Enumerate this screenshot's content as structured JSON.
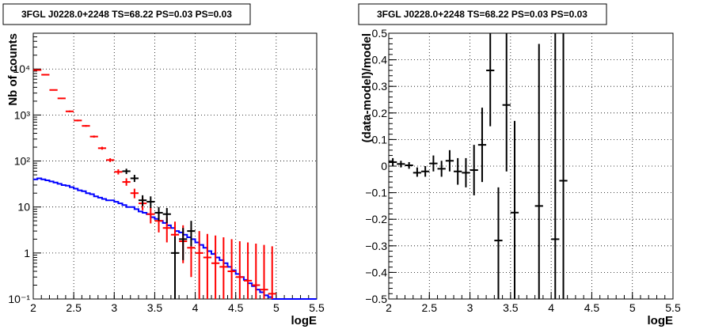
{
  "chart_data": [
    {
      "type": "line",
      "title": "3FGL J0228.0+2248 TS=68.22 PS=0.03 PS=0.03",
      "xlabel": "logE",
      "ylabel": "Nb of counts",
      "xlim": [
        2,
        5.5
      ],
      "ylim": [
        0.1,
        60000
      ],
      "yscale": "log",
      "grid": true,
      "x_ticks": [
        2,
        2.5,
        3,
        3.5,
        4,
        4.5,
        5,
        5.5
      ],
      "x_tick_labels": [
        "2",
        "2.5",
        "3",
        "3.5",
        "4",
        "4.5",
        "5",
        "5.5"
      ],
      "y_ticks": [
        0.1,
        1,
        10,
        100,
        1000,
        10000
      ],
      "y_tick_labels": [
        "10⁻¹",
        "1",
        "10",
        "10²",
        "10³",
        "10⁴"
      ],
      "colors": {
        "data": "#000000",
        "model": "#ff0000",
        "component": "#0000ff"
      },
      "series": [
        {
          "role": "data",
          "x": [
            3.15,
            3.25,
            3.35,
            3.45,
            3.55,
            3.65,
            3.75,
            3.85,
            3.95
          ],
          "y": [
            60,
            42,
            14,
            13,
            7.5,
            7,
            1.0,
            2.0,
            3.0
          ],
          "yerr_low": [
            52,
            35,
            10.5,
            9.5,
            5,
            4.5,
            0.1,
            0.7,
            1.4
          ],
          "yerr_high": [
            68,
            50,
            18,
            17,
            10,
            9.5,
            2.3,
            3.5,
            5.0
          ]
        },
        {
          "role": "model",
          "x": [
            2.05,
            2.15,
            2.25,
            2.35,
            2.45,
            2.55,
            2.65,
            2.75,
            2.85,
            2.95,
            3.05,
            3.15,
            3.25,
            3.35,
            3.45,
            3.55,
            3.65,
            3.75,
            3.85,
            3.95,
            4.05,
            4.15,
            4.25,
            4.35,
            4.45,
            4.55,
            4.65,
            4.75,
            4.85,
            4.95
          ],
          "y": [
            9500,
            7500,
            3500,
            2300,
            1200,
            760,
            580,
            340,
            190,
            105,
            58,
            35,
            20,
            12,
            7,
            5,
            3.5,
            2.5,
            1.8,
            1.3,
            1.0,
            0.8,
            0.6,
            0.5,
            0.4,
            0.3,
            0.25,
            0.2,
            0.16,
            0.13
          ],
          "yerr_low": [
            9300,
            7300,
            3400,
            2230,
            1150,
            730,
            555,
            322,
            176,
            95,
            51,
            29,
            15.5,
            8.5,
            4.4,
            2.8,
            1.7,
            1.0,
            0.6,
            0.3,
            0.1,
            0.1,
            0.1,
            0.1,
            0.1,
            0.1,
            0.1,
            0.1,
            0.1,
            0.1
          ],
          "yerr_high": [
            9700,
            7700,
            3600,
            2370,
            1250,
            790,
            605,
            358,
            204,
            115,
            66,
            42,
            25,
            16,
            10,
            7.5,
            6,
            4.8,
            4,
            3.5,
            3,
            2.6,
            2.4,
            2.2,
            2,
            1.8,
            1.7,
            1.6,
            1.5,
            1.4
          ]
        },
        {
          "role": "component",
          "x": [
            2.0,
            2.05,
            2.1,
            2.15,
            2.2,
            2.25,
            2.3,
            2.35,
            2.4,
            2.45,
            2.5,
            2.55,
            2.6,
            2.65,
            2.7,
            2.75,
            2.8,
            2.85,
            2.9,
            2.95,
            3.0,
            3.05,
            3.1,
            3.15,
            3.2,
            3.25,
            3.3,
            3.35,
            3.4,
            3.45,
            3.5,
            3.55,
            3.6,
            3.65,
            3.7,
            3.75,
            3.8,
            3.85,
            3.9,
            3.95,
            4.0,
            4.05,
            4.1,
            4.15,
            4.2,
            4.25,
            4.3,
            4.35,
            4.4,
            4.45,
            4.5,
            4.55,
            4.6,
            4.65,
            4.7,
            4.75,
            4.8,
            4.85,
            4.9,
            4.95,
            5.0,
            5.05,
            5.1,
            5.15,
            5.2,
            5.25,
            5.3,
            5.35,
            5.4,
            5.45,
            5.5
          ],
          "y": [
            40,
            42,
            40,
            38,
            36,
            34,
            32,
            30,
            29,
            27,
            25,
            23,
            22,
            20,
            19,
            17,
            16,
            15,
            14,
            14,
            13,
            12,
            11,
            10,
            10,
            9,
            8,
            7.5,
            7,
            6,
            5.5,
            5,
            4.5,
            4,
            3.5,
            3,
            2.8,
            2.5,
            2.2,
            2,
            1.7,
            1.5,
            1.3,
            1.1,
            0.95,
            0.8,
            0.7,
            0.6,
            0.5,
            0.42,
            0.35,
            0.3,
            0.26,
            0.22,
            0.19,
            0.16,
            0.14,
            0.12,
            0.11,
            0.1,
            0.1,
            0.1,
            0.1,
            0.1,
            0.1,
            0.1,
            0.1,
            0.1,
            0.1,
            0.1,
            0.1
          ]
        }
      ]
    },
    {
      "type": "scatter",
      "title": "3FGL J0228.0+2248 TS=68.22 PS=0.03 PS=0.03",
      "xlabel": "logE",
      "ylabel": "(data-model)/model",
      "xlim": [
        2,
        5.5
      ],
      "ylim": [
        -0.5,
        0.5
      ],
      "grid": true,
      "x_ticks": [
        2,
        2.5,
        3,
        3.5,
        4,
        4.5,
        5,
        5.5
      ],
      "x_tick_labels": [
        "2",
        "2.5",
        "3",
        "3.5",
        "4",
        "4.5",
        "5",
        "5.5"
      ],
      "y_ticks": [
        -0.5,
        -0.4,
        -0.3,
        -0.2,
        -0.1,
        0,
        0.1,
        0.2,
        0.3,
        0.4,
        0.5
      ],
      "y_tick_labels": [
        "−0.5",
        "−0.4",
        "−0.3",
        "−0.2",
        "−0.1",
        "0",
        "0.1",
        "0.2",
        "0.3",
        "0.4",
        "0.5"
      ],
      "colors": {
        "points": "#000000"
      },
      "series": [
        {
          "role": "residual",
          "x": [
            2.05,
            2.15,
            2.25,
            2.35,
            2.45,
            2.55,
            2.65,
            2.75,
            2.85,
            2.95,
            3.05,
            3.15,
            3.25,
            3.35,
            3.45,
            3.55,
            3.85,
            4.05,
            4.15
          ],
          "y": [
            0.015,
            0.008,
            0.003,
            -0.025,
            -0.02,
            0.01,
            -0.01,
            0.02,
            -0.02,
            -0.025,
            -0.015,
            0.08,
            0.36,
            -0.28,
            0.23,
            -0.175,
            -0.15,
            -0.275,
            -0.055
          ],
          "yerr_low": [
            0.0,
            -0.005,
            -0.01,
            -0.04,
            -0.04,
            -0.02,
            -0.04,
            -0.02,
            -0.07,
            -0.08,
            -0.11,
            -0.06,
            0.15,
            -0.5,
            -0.02,
            -0.5,
            -0.5,
            -0.5,
            -0.5
          ],
          "yerr_high": [
            0.03,
            0.02,
            0.015,
            -0.005,
            0.0,
            0.04,
            0.02,
            0.06,
            0.03,
            0.03,
            0.08,
            0.22,
            0.52,
            -0.08,
            0.52,
            0.17,
            0.46,
            0.5,
            0.5
          ]
        }
      ]
    }
  ]
}
